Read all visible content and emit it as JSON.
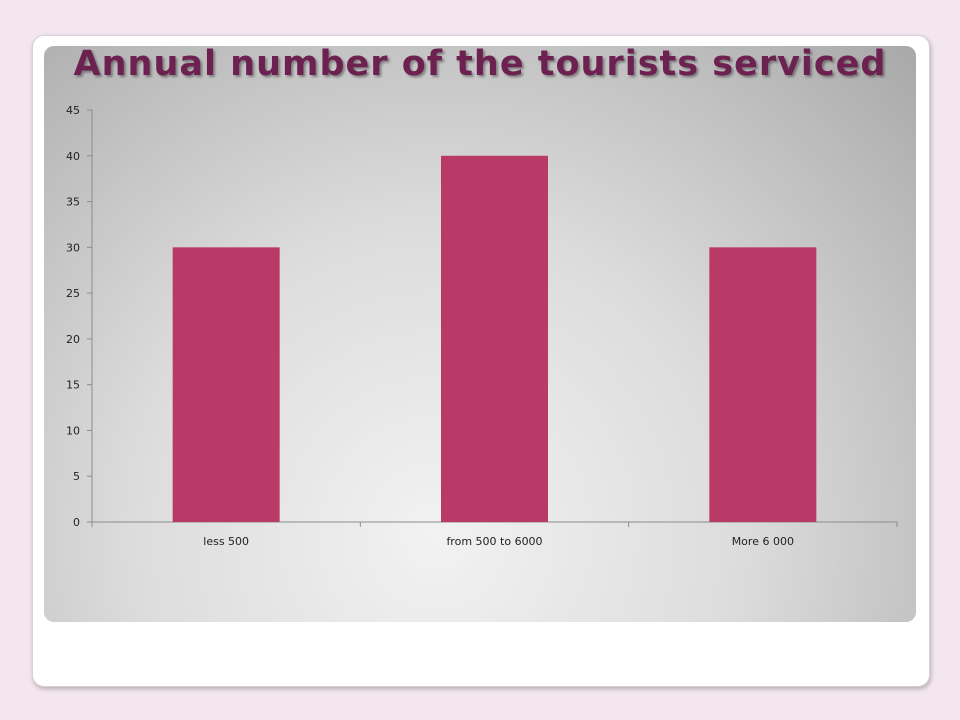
{
  "colors": {
    "bar": "#b93a67",
    "axis": "#8c8c8c",
    "title": "#6d2150"
  },
  "chart_data": {
    "type": "bar",
    "title": "Annual number of the tourists serviced",
    "categories": [
      "less 500",
      "from 500 to 6000",
      "More 6 000"
    ],
    "values": [
      30,
      40,
      30
    ],
    "ylim": [
      0,
      45
    ],
    "yticks": [
      0,
      5,
      10,
      15,
      20,
      25,
      30,
      35,
      40,
      45
    ],
    "grid": false,
    "legend": "none"
  }
}
